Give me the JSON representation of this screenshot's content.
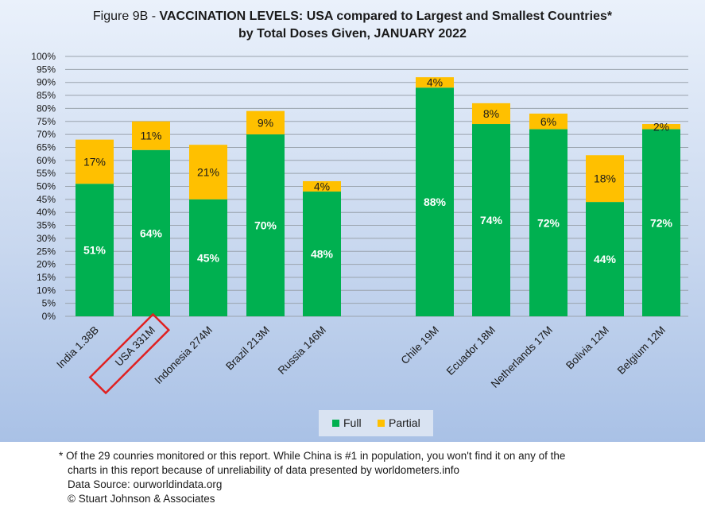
{
  "title": {
    "prefix": "Figure 9B - ",
    "main": "VACCINATION LEVELS:  USA compared to Largest and Smallest Countries*",
    "line2": "by Total Doses Given, JANUARY 2022"
  },
  "colors": {
    "full": "#00b050",
    "partial": "#ffc000",
    "highlight_box": "#e02020"
  },
  "legend": {
    "full": "Full",
    "partial": "Partial"
  },
  "footnote": {
    "line1": "* Of the 29 counries monitored or this report. While China is #1 in population, you won't find it on any of the",
    "line2": "charts in this report because of unreliability of data presented by worldometers.info",
    "line3": "Data Source:  ourworldindata.org",
    "line4": "© Stuart Johnson & Associates"
  },
  "chart_data": {
    "type": "bar",
    "stacked": true,
    "categories": [
      "India 1.38B",
      "USA 331M",
      "Indonesia 274M",
      "Brazil 213M",
      "Russia 146M",
      "Chile 19M",
      "Ecuador 18M",
      "Netherlands 17M",
      "Bolivia 12M",
      "Belgium 12M"
    ],
    "series": [
      {
        "name": "Full",
        "values": [
          51,
          64,
          45,
          70,
          48,
          88,
          74,
          72,
          44,
          72
        ],
        "labels": [
          "51%",
          "64%",
          "45%",
          "70%",
          "48%",
          "88%",
          "74%",
          "72%",
          "44%",
          "72%"
        ]
      },
      {
        "name": "Partial",
        "values": [
          17,
          11,
          21,
          9,
          4,
          4,
          8,
          6,
          18,
          2
        ],
        "labels": [
          "17%",
          "11%",
          "21%",
          "9%",
          "4%",
          "4%",
          "8%",
          "6%",
          "18%",
          "2%"
        ]
      }
    ],
    "ylim": [
      0,
      100
    ],
    "yticks": [
      "0%",
      "5%",
      "10%",
      "15%",
      "20%",
      "25%",
      "30%",
      "35%",
      "40%",
      "45%",
      "50%",
      "55%",
      "60%",
      "65%",
      "70%",
      "75%",
      "80%",
      "85%",
      "90%",
      "95%",
      "100%"
    ],
    "grid": true,
    "legend_position": "bottom",
    "highlighted_category": "USA 331M"
  }
}
